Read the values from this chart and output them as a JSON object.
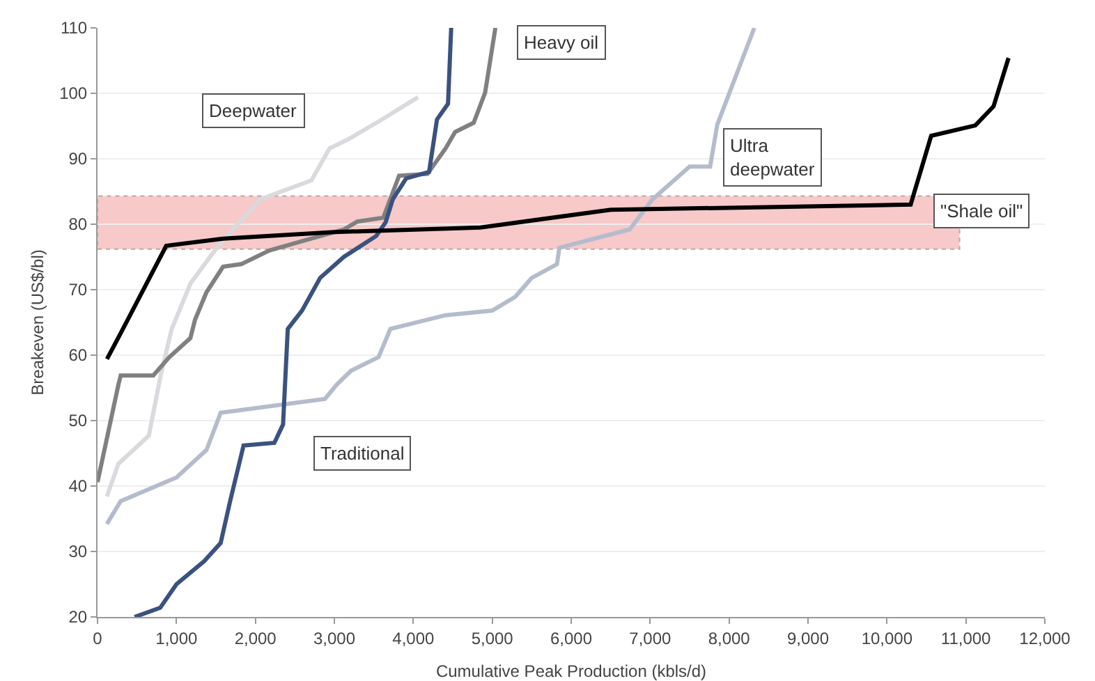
{
  "chart_data": {
    "type": "line",
    "xlabel": "Cumulative Peak Production (kbls/d)",
    "ylabel": "Breakeven (US$/bl)",
    "xlim": [
      0,
      12000
    ],
    "xticks": [
      {
        "value": 0,
        "label": "0"
      },
      {
        "value": 1000,
        "label": "1,000"
      },
      {
        "value": 2000,
        "label": "2,000"
      },
      {
        "value": 3000,
        "label": "3,000"
      },
      {
        "value": 4000,
        "label": "4,000"
      },
      {
        "value": 5000,
        "label": "5,000"
      },
      {
        "value": 6000,
        "label": "6,000"
      },
      {
        "value": 7000,
        "label": "7,000"
      },
      {
        "value": 8000,
        "label": "8,000"
      },
      {
        "value": 9000,
        "label": "9,000"
      },
      {
        "value": 10000,
        "label": "10,000"
      },
      {
        "value": 11000,
        "label": "11,000"
      },
      {
        "value": 12000,
        "label": "12,000"
      }
    ],
    "ylim": [
      20,
      110
    ],
    "yticks": [
      20,
      30,
      40,
      50,
      60,
      70,
      80,
      90,
      100,
      110
    ],
    "grid": "y",
    "legend": false,
    "marker": "none",
    "line_style": "solid",
    "bands": [
      {
        "axis": "y",
        "from": 76.2,
        "to": 84.3,
        "color": "#f7c4c4"
      }
    ],
    "series": [
      {
        "name": "Deepwater",
        "color": "#d9d9de",
        "x": [
          118,
          265,
          650,
          800,
          940,
          1180,
          1530,
          2060,
          2710,
          2940,
          3180,
          3590,
          4060
        ],
        "values": [
          38.4,
          43.4,
          47.7,
          56.9,
          64,
          71,
          76.7,
          83.8,
          86.7,
          91.6,
          93,
          95.9,
          99.4
        ]
      },
      {
        "name": "Ultra deepwater",
        "color": "#b4bccc",
        "x": [
          118,
          294,
          1000,
          1380,
          1560,
          2880,
          3030,
          3210,
          3560,
          3710,
          4410,
          5000,
          5290,
          5500,
          5820,
          5850,
          6740,
          7030,
          7500,
          7760,
          7850,
          8320
        ],
        "values": [
          34.2,
          37.7,
          41.3,
          45.5,
          51.2,
          53.3,
          55.5,
          57.6,
          59.7,
          64,
          66.1,
          66.8,
          68.9,
          71.8,
          73.9,
          76.4,
          79.2,
          83.8,
          88.8,
          88.8,
          95.2,
          110
        ]
      },
      {
        "name": "Heavy oil",
        "color": "#808080",
        "x": [
          0,
          265,
          294,
          706,
          910,
          1176,
          1235,
          1380,
          1590,
          1820,
          2180,
          2590,
          3120,
          3290,
          3620,
          3820,
          4180,
          4410,
          4530,
          4765,
          4910,
          5040
        ],
        "values": [
          40.6,
          55.5,
          56.9,
          56.9,
          59.7,
          62.6,
          65.4,
          69.6,
          73.5,
          73.9,
          76,
          77.4,
          79.2,
          80.4,
          81,
          87.4,
          87.7,
          91.6,
          94.1,
          95.5,
          100.1,
          110
        ]
      },
      {
        "name": "Traditional",
        "color": "#3b5280",
        "x": [
          470,
          794,
          1000,
          1350,
          1560,
          1680,
          1850,
          2240,
          2350,
          2410,
          2590,
          2820,
          3120,
          3530,
          3650,
          3740,
          3910,
          4200,
          4300,
          4440,
          4480
        ],
        "values": [
          20,
          21.4,
          25,
          28.5,
          31.3,
          37.7,
          46.2,
          46.6,
          49.4,
          64,
          66.8,
          71.8,
          75,
          78.2,
          80.3,
          83.8,
          87,
          88,
          96,
          98.4,
          110
        ]
      },
      {
        "name": "\"Shale oil\"",
        "color": "#000000",
        "x": [
          120,
          300,
          870,
          1590,
          3000,
          4850,
          6500,
          10300,
          10560,
          11120,
          11350,
          11540
        ],
        "values": [
          59.4,
          63.5,
          76.7,
          77.8,
          78.8,
          79.5,
          82.2,
          83,
          93.5,
          95.1,
          98,
          105.4
        ]
      }
    ]
  }
}
